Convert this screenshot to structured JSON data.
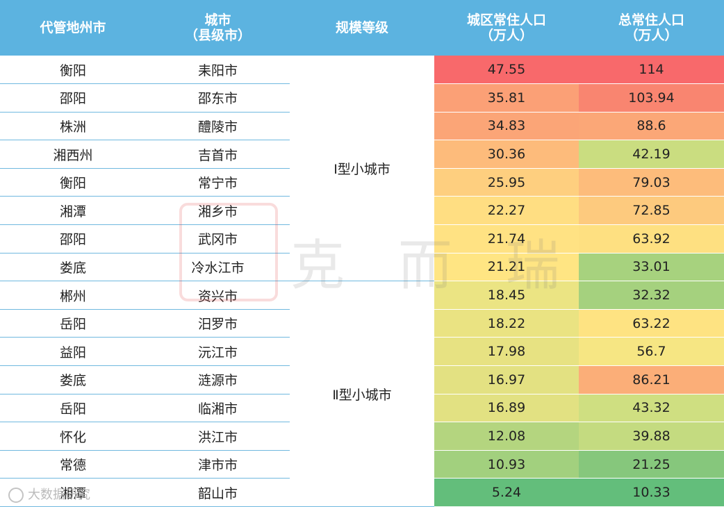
{
  "headers": {
    "col1": "代管地州市",
    "col2_line1": "城市",
    "col2_line2": "（县级市）",
    "col3": "规模等级",
    "col4_line1": "城区常住人口",
    "col4_line2": "（万人）",
    "col5_line1": "总常住人口",
    "col5_line2": "（万人）"
  },
  "groups": {
    "g1": "Ⅰ型小城市",
    "g2": "Ⅱ型小城市"
  },
  "rows": [
    {
      "prefecture": "衡阳",
      "city": "耒阳市",
      "urban": "47.55",
      "total": "114",
      "urban_color": "#f8696b",
      "total_color": "#f8696b"
    },
    {
      "prefecture": "邵阳",
      "city": "邵东市",
      "urban": "35.81",
      "total": "103.94",
      "urban_color": "#fba076",
      "total_color": "#f98570"
    },
    {
      "prefecture": "株洲",
      "city": "醴陵市",
      "urban": "34.83",
      "total": "88.6",
      "urban_color": "#fba577",
      "total_color": "#fba777"
    },
    {
      "prefecture": "湘西州",
      "city": "吉首市",
      "urban": "30.36",
      "total": "42.19",
      "urban_color": "#fdbb7b",
      "total_color": "#cadd80"
    },
    {
      "prefecture": "衡阳",
      "city": "常宁市",
      "urban": "25.95",
      "total": "79.03",
      "urban_color": "#fecf7f",
      "total_color": "#fdbc7b"
    },
    {
      "prefecture": "湘潭",
      "city": "湘乡市",
      "urban": "22.27",
      "total": "72.85",
      "urban_color": "#ffde82",
      "total_color": "#fdca7e"
    },
    {
      "prefecture": "邵阳",
      "city": "武冈市",
      "urban": "21.74",
      "total": "63.92",
      "urban_color": "#ffe283",
      "total_color": "#fee081"
    },
    {
      "prefecture": "娄底",
      "city": "冷水江市",
      "urban": "21.21",
      "total": "33.01",
      "urban_color": "#ffe583",
      "total_color": "#a7d27e"
    },
    {
      "prefecture": "郴州",
      "city": "资兴市",
      "urban": "18.45",
      "total": "32.32",
      "urban_color": "#ebe483",
      "total_color": "#a5d17e"
    },
    {
      "prefecture": "岳阳",
      "city": "汨罗市",
      "urban": "18.22",
      "total": "63.22",
      "urban_color": "#eae382",
      "total_color": "#fee382"
    },
    {
      "prefecture": "益阳",
      "city": "沅江市",
      "urban": "17.98",
      "total": "56.7",
      "urban_color": "#e7e282",
      "total_color": "#f6e683"
    },
    {
      "prefecture": "娄底",
      "city": "涟源市",
      "urban": "16.97",
      "total": "86.21",
      "urban_color": "#e3e182",
      "total_color": "#fbae78"
    },
    {
      "prefecture": "岳阳",
      "city": "临湘市",
      "urban": "16.89",
      "total": "43.32",
      "urban_color": "#e2e182",
      "total_color": "#cfdf81"
    },
    {
      "prefecture": "怀化",
      "city": "洪江市",
      "urban": "12.08",
      "total": "39.88",
      "urban_color": "#b4d57f",
      "total_color": "#c4db80"
    },
    {
      "prefecture": "常德",
      "city": "津市市",
      "urban": "10.93",
      "total": "21.25",
      "urban_color": "#a2d07e",
      "total_color": "#86c77c"
    },
    {
      "prefecture": "湘潭",
      "city": "韶山市",
      "urban": "5.24",
      "total": "10.33",
      "urban_color": "#63be7b",
      "total_color": "#63be7b"
    }
  ],
  "watermark": {
    "text": "克 而 瑞",
    "brand": "大数据研究"
  }
}
